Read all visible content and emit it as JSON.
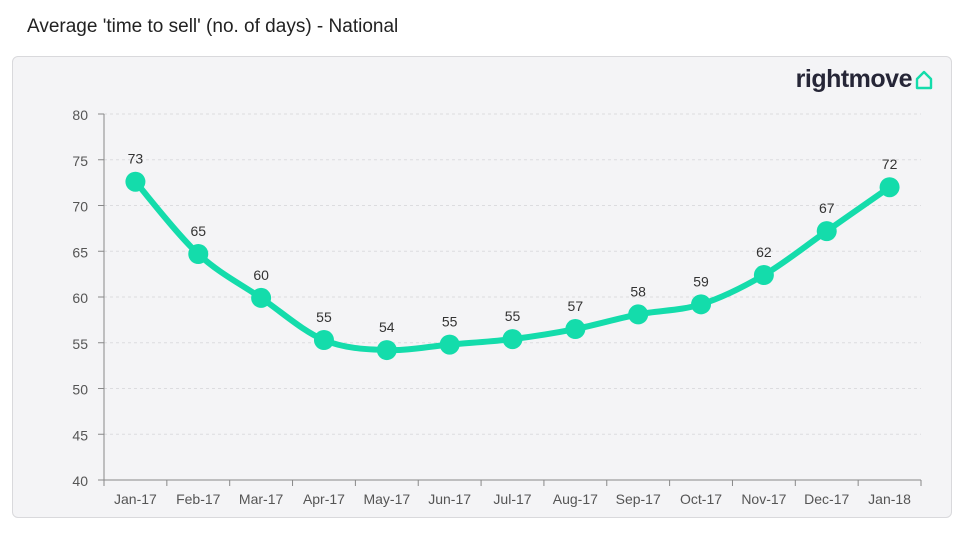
{
  "title": "Average 'time to sell' (no. of days) - National",
  "logo": {
    "text": "rightmove",
    "icon": "house-icon"
  },
  "colors": {
    "series": "#14dcab",
    "grid": "#dcdcdf",
    "axis": "#888888",
    "panel_bg": "#f4f4f6"
  },
  "chart_data": {
    "type": "line",
    "categories": [
      "Jan-17",
      "Feb-17",
      "Mar-17",
      "Apr-17",
      "May-17",
      "Jun-17",
      "Jul-17",
      "Aug-17",
      "Sep-17",
      "Oct-17",
      "Nov-17",
      "Dec-17",
      "Jan-18"
    ],
    "values": [
      72.6,
      64.7,
      59.9,
      55.3,
      54.2,
      54.8,
      55.4,
      56.5,
      58.1,
      59.2,
      62.4,
      67.2,
      72.0
    ],
    "data_labels": [
      "73",
      "65",
      "60",
      "55",
      "54",
      "55",
      "55",
      "57",
      "58",
      "59",
      "62",
      "67",
      "72"
    ],
    "ylim": [
      40,
      80
    ],
    "yticks": [
      40,
      45,
      50,
      55,
      60,
      65,
      70,
      75,
      80
    ],
    "ytick_labels": [
      "40",
      "45",
      "50",
      "55",
      "60",
      "65",
      "70",
      "75",
      "80"
    ],
    "grid": true,
    "xlabel": "",
    "ylabel": ""
  }
}
